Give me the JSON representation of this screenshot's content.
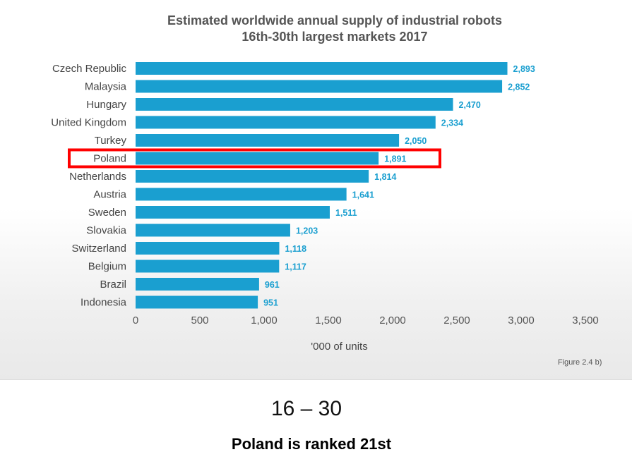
{
  "chart_data": {
    "type": "bar",
    "orientation": "horizontal",
    "title": "Estimated worldwide  annual supply of industrial robots",
    "subtitle": "16th-30th largest markets 2017",
    "xlabel": "'000 of units",
    "ylabel": "",
    "xlim": [
      0,
      3500
    ],
    "xticks": [
      0,
      500,
      1000,
      1500,
      2000,
      2500,
      3000,
      3500
    ],
    "xtick_labels": [
      "0",
      "500",
      "1,000",
      "1,500",
      "2,000",
      "2,500",
      "3,000",
      "3,500"
    ],
    "categories": [
      "Czech Republic",
      "Malaysia",
      "Hungary",
      "United Kingdom",
      "Turkey",
      "Poland",
      "Netherlands",
      "Austria",
      "Sweden",
      "Slovakia",
      "Switzerland",
      "Belgium",
      "Brazil",
      "Indonesia"
    ],
    "values": [
      2893,
      2852,
      2470,
      2334,
      2050,
      1891,
      1814,
      1641,
      1511,
      1203,
      1118,
      1117,
      961,
      951
    ],
    "value_labels": [
      "2,893",
      "2,852",
      "2,470",
      "2,334",
      "2,050",
      "1,891",
      "1,814",
      "1,641",
      "1,511",
      "1,203",
      "1,118",
      "1,117",
      "961",
      "951"
    ],
    "highlighted_category": "Poland",
    "bar_color": "#1a9fd0",
    "highlight_color": "#ff0000",
    "grid": false,
    "legend": "none"
  },
  "figure_caption": "Figure 2.4 b)",
  "range_text": "16 – 30",
  "rank_text": "Poland is ranked 21st"
}
